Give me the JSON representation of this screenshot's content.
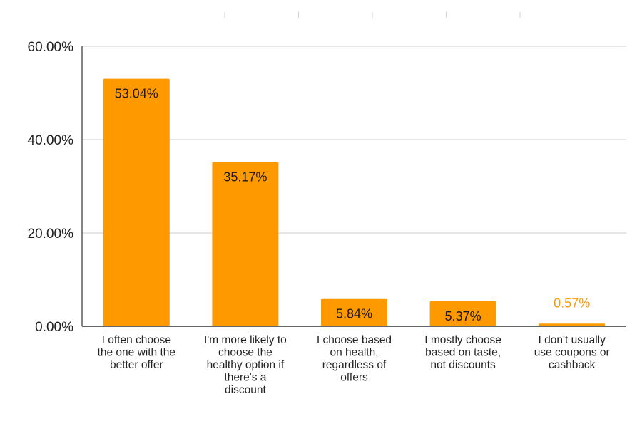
{
  "chart_data": {
    "type": "bar",
    "categories": [
      [
        "I often choose",
        "the one with the",
        "better offer"
      ],
      [
        "I'm more likely to",
        "choose the",
        "healthy option if",
        "there's a",
        "discount"
      ],
      [
        "I choose based",
        "on health,",
        "regardless of",
        "offers"
      ],
      [
        "I mostly choose",
        "based on taste,",
        "not discounts"
      ],
      [
        "I don't usually",
        "use coupons or",
        "cashback"
      ]
    ],
    "values": [
      53.04,
      35.17,
      5.84,
      5.37,
      0.57
    ],
    "data_labels": [
      "53.04%",
      "35.17%",
      "5.84%",
      "5.37%",
      "0.57%"
    ],
    "ylim": [
      0,
      60
    ],
    "yticks": [
      0,
      20,
      40,
      60
    ],
    "ytick_labels": [
      "0.00%",
      "20.00%",
      "40.00%",
      "60.00%"
    ],
    "grid": true,
    "legend": "none",
    "colors": {
      "bar": "#FF9900",
      "label_inside": "#1a1a1a",
      "label_outside": "#FF9900",
      "grid": "#cccccc",
      "axis": "#333333",
      "text": "#222222"
    }
  }
}
